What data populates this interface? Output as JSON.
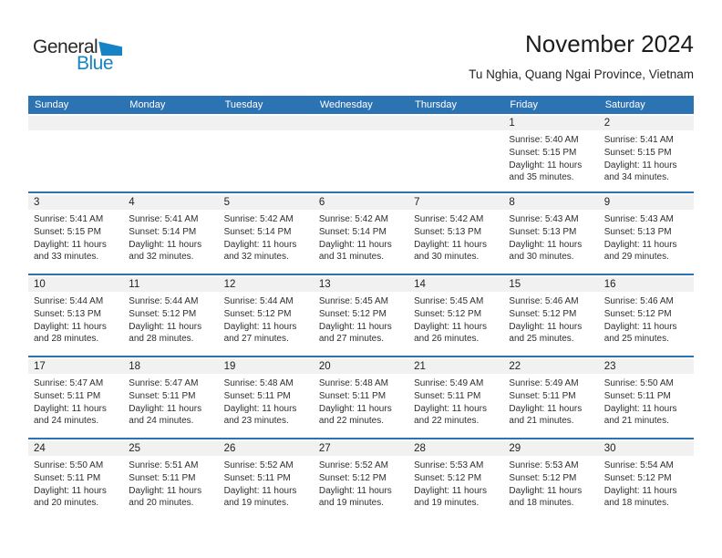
{
  "logo": {
    "line1": "General",
    "line2": "Blue"
  },
  "header": {
    "title": "November 2024",
    "subtitle": "Tu Nghia, Quang Ngai Province, Vietnam"
  },
  "day_headers": [
    "Sunday",
    "Monday",
    "Tuesday",
    "Wednesday",
    "Thursday",
    "Friday",
    "Saturday"
  ],
  "colors": {
    "header_bg": "#2c73b4",
    "week_separator": "#2c73b4",
    "number_strip_bg": "#f1f1f2",
    "logo_blue": "#1583c5",
    "header_text": "#ffffff",
    "body_text": "#2e2e2e"
  },
  "weeks": [
    [
      {
        "day": "",
        "lines": []
      },
      {
        "day": "",
        "lines": []
      },
      {
        "day": "",
        "lines": []
      },
      {
        "day": "",
        "lines": []
      },
      {
        "day": "",
        "lines": []
      },
      {
        "day": "1",
        "lines": [
          "Sunrise: 5:40 AM",
          "Sunset: 5:15 PM",
          "Daylight: 11 hours",
          "and 35 minutes."
        ]
      },
      {
        "day": "2",
        "lines": [
          "Sunrise: 5:41 AM",
          "Sunset: 5:15 PM",
          "Daylight: 11 hours",
          "and 34 minutes."
        ]
      }
    ],
    [
      {
        "day": "3",
        "lines": [
          "Sunrise: 5:41 AM",
          "Sunset: 5:15 PM",
          "Daylight: 11 hours",
          "and 33 minutes."
        ]
      },
      {
        "day": "4",
        "lines": [
          "Sunrise: 5:41 AM",
          "Sunset: 5:14 PM",
          "Daylight: 11 hours",
          "and 32 minutes."
        ]
      },
      {
        "day": "5",
        "lines": [
          "Sunrise: 5:42 AM",
          "Sunset: 5:14 PM",
          "Daylight: 11 hours",
          "and 32 minutes."
        ]
      },
      {
        "day": "6",
        "lines": [
          "Sunrise: 5:42 AM",
          "Sunset: 5:14 PM",
          "Daylight: 11 hours",
          "and 31 minutes."
        ]
      },
      {
        "day": "7",
        "lines": [
          "Sunrise: 5:42 AM",
          "Sunset: 5:13 PM",
          "Daylight: 11 hours",
          "and 30 minutes."
        ]
      },
      {
        "day": "8",
        "lines": [
          "Sunrise: 5:43 AM",
          "Sunset: 5:13 PM",
          "Daylight: 11 hours",
          "and 30 minutes."
        ]
      },
      {
        "day": "9",
        "lines": [
          "Sunrise: 5:43 AM",
          "Sunset: 5:13 PM",
          "Daylight: 11 hours",
          "and 29 minutes."
        ]
      }
    ],
    [
      {
        "day": "10",
        "lines": [
          "Sunrise: 5:44 AM",
          "Sunset: 5:13 PM",
          "Daylight: 11 hours",
          "and 28 minutes."
        ]
      },
      {
        "day": "11",
        "lines": [
          "Sunrise: 5:44 AM",
          "Sunset: 5:12 PM",
          "Daylight: 11 hours",
          "and 28 minutes."
        ]
      },
      {
        "day": "12",
        "lines": [
          "Sunrise: 5:44 AM",
          "Sunset: 5:12 PM",
          "Daylight: 11 hours",
          "and 27 minutes."
        ]
      },
      {
        "day": "13",
        "lines": [
          "Sunrise: 5:45 AM",
          "Sunset: 5:12 PM",
          "Daylight: 11 hours",
          "and 27 minutes."
        ]
      },
      {
        "day": "14",
        "lines": [
          "Sunrise: 5:45 AM",
          "Sunset: 5:12 PM",
          "Daylight: 11 hours",
          "and 26 minutes."
        ]
      },
      {
        "day": "15",
        "lines": [
          "Sunrise: 5:46 AM",
          "Sunset: 5:12 PM",
          "Daylight: 11 hours",
          "and 25 minutes."
        ]
      },
      {
        "day": "16",
        "lines": [
          "Sunrise: 5:46 AM",
          "Sunset: 5:12 PM",
          "Daylight: 11 hours",
          "and 25 minutes."
        ]
      }
    ],
    [
      {
        "day": "17",
        "lines": [
          "Sunrise: 5:47 AM",
          "Sunset: 5:11 PM",
          "Daylight: 11 hours",
          "and 24 minutes."
        ]
      },
      {
        "day": "18",
        "lines": [
          "Sunrise: 5:47 AM",
          "Sunset: 5:11 PM",
          "Daylight: 11 hours",
          "and 24 minutes."
        ]
      },
      {
        "day": "19",
        "lines": [
          "Sunrise: 5:48 AM",
          "Sunset: 5:11 PM",
          "Daylight: 11 hours",
          "and 23 minutes."
        ]
      },
      {
        "day": "20",
        "lines": [
          "Sunrise: 5:48 AM",
          "Sunset: 5:11 PM",
          "Daylight: 11 hours",
          "and 22 minutes."
        ]
      },
      {
        "day": "21",
        "lines": [
          "Sunrise: 5:49 AM",
          "Sunset: 5:11 PM",
          "Daylight: 11 hours",
          "and 22 minutes."
        ]
      },
      {
        "day": "22",
        "lines": [
          "Sunrise: 5:49 AM",
          "Sunset: 5:11 PM",
          "Daylight: 11 hours",
          "and 21 minutes."
        ]
      },
      {
        "day": "23",
        "lines": [
          "Sunrise: 5:50 AM",
          "Sunset: 5:11 PM",
          "Daylight: 11 hours",
          "and 21 minutes."
        ]
      }
    ],
    [
      {
        "day": "24",
        "lines": [
          "Sunrise: 5:50 AM",
          "Sunset: 5:11 PM",
          "Daylight: 11 hours",
          "and 20 minutes."
        ]
      },
      {
        "day": "25",
        "lines": [
          "Sunrise: 5:51 AM",
          "Sunset: 5:11 PM",
          "Daylight: 11 hours",
          "and 20 minutes."
        ]
      },
      {
        "day": "26",
        "lines": [
          "Sunrise: 5:52 AM",
          "Sunset: 5:11 PM",
          "Daylight: 11 hours",
          "and 19 minutes."
        ]
      },
      {
        "day": "27",
        "lines": [
          "Sunrise: 5:52 AM",
          "Sunset: 5:12 PM",
          "Daylight: 11 hours",
          "and 19 minutes."
        ]
      },
      {
        "day": "28",
        "lines": [
          "Sunrise: 5:53 AM",
          "Sunset: 5:12 PM",
          "Daylight: 11 hours",
          "and 19 minutes."
        ]
      },
      {
        "day": "29",
        "lines": [
          "Sunrise: 5:53 AM",
          "Sunset: 5:12 PM",
          "Daylight: 11 hours",
          "and 18 minutes."
        ]
      },
      {
        "day": "30",
        "lines": [
          "Sunrise: 5:54 AM",
          "Sunset: 5:12 PM",
          "Daylight: 11 hours",
          "and 18 minutes."
        ]
      }
    ]
  ]
}
